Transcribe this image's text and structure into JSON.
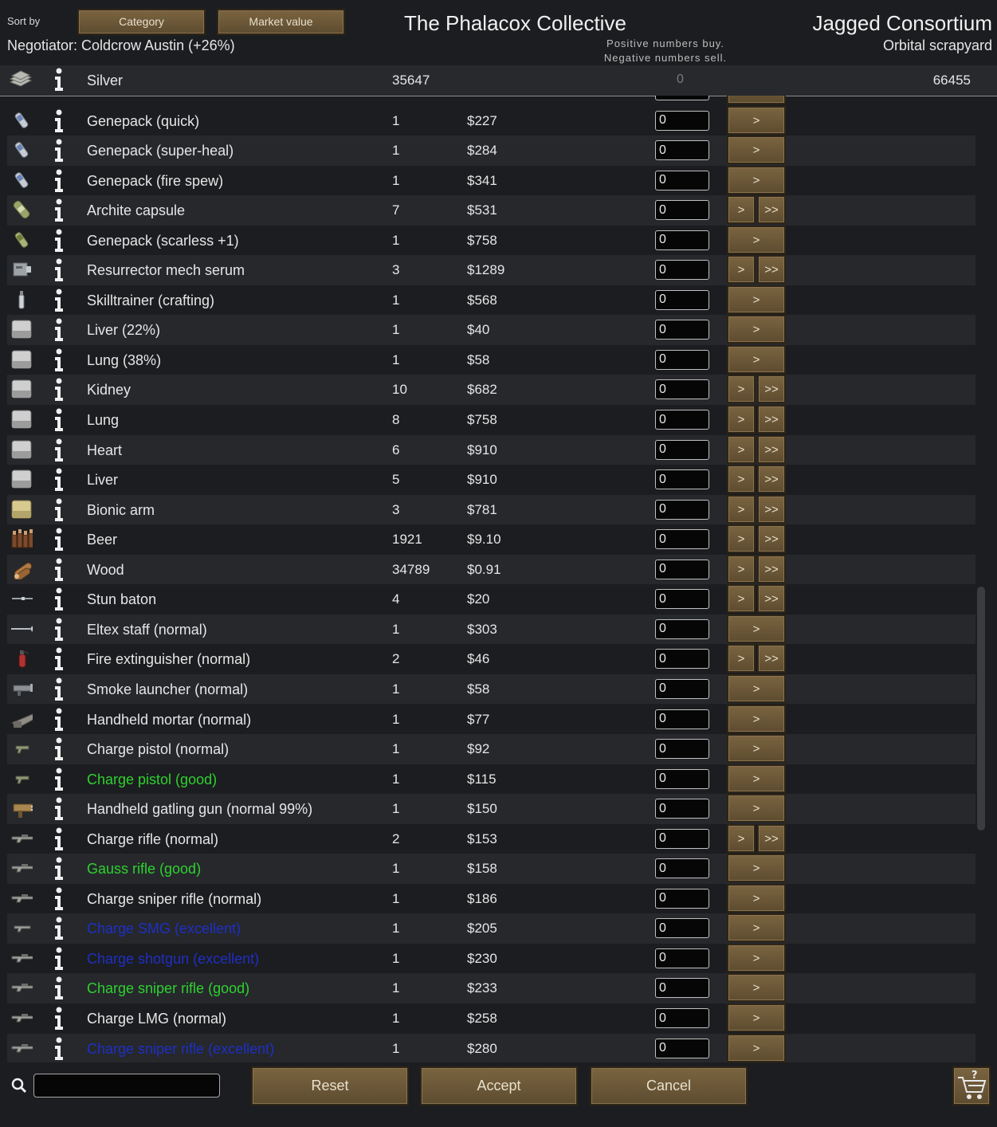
{
  "header": {
    "sort_label": "Sort by",
    "sort_category": "Category",
    "sort_market_value": "Market value",
    "negotiator": "Negotiator: Coldcrow Austin (+26%)",
    "faction_title": "The Phalacox Collective",
    "hint_line1": "Positive numbers buy.",
    "hint_line2": "Negative numbers sell.",
    "trader_name": "Jagged Consortium",
    "trader_subtitle": "Orbital scrapyard"
  },
  "silver": {
    "name": "Silver",
    "colony_count": "35647",
    "trade_amount": "0",
    "trader_count": "66455",
    "icon": "silver-stack-icon"
  },
  "items": [
    {
      "name": "Genepack (quick)",
      "count": "1",
      "price": "$227",
      "qty": "0",
      "quality": "normal",
      "icon": "genepack-icon",
      "buttons": [
        "> "
      ]
    },
    {
      "name": "Genepack (super-heal)",
      "count": "1",
      "price": "$284",
      "qty": "0",
      "quality": "normal",
      "icon": "genepack-icon",
      "buttons": [
        ">"
      ]
    },
    {
      "name": "Genepack (fire spew)",
      "count": "1",
      "price": "$341",
      "qty": "0",
      "quality": "normal",
      "icon": "genepack-icon",
      "buttons": [
        ">"
      ]
    },
    {
      "name": "Archite capsule",
      "count": "7",
      "price": "$531",
      "qty": "0",
      "quality": "normal",
      "icon": "archite-capsule-icon",
      "buttons": [
        ">",
        ">>"
      ]
    },
    {
      "name": "Genepack (scarless +1)",
      "count": "1",
      "price": "$758",
      "qty": "0",
      "quality": "normal",
      "icon": "genepack-green-icon",
      "buttons": [
        ">"
      ]
    },
    {
      "name": "Resurrector mech serum",
      "count": "3",
      "price": "$1289",
      "qty": "0",
      "quality": "normal",
      "icon": "mech-serum-icon",
      "buttons": [
        ">",
        ">>"
      ]
    },
    {
      "name": "Skilltrainer (crafting)",
      "count": "1",
      "price": "$568",
      "qty": "0",
      "quality": "normal",
      "icon": "skilltrainer-icon",
      "buttons": [
        ">"
      ]
    },
    {
      "name": "Liver (22%)",
      "count": "1",
      "price": "$40",
      "qty": "0",
      "quality": "normal",
      "icon": "organ-icon",
      "buttons": [
        ">"
      ]
    },
    {
      "name": "Lung (38%)",
      "count": "1",
      "price": "$58",
      "qty": "0",
      "quality": "normal",
      "icon": "organ-icon",
      "buttons": [
        ">"
      ]
    },
    {
      "name": "Kidney",
      "count": "10",
      "price": "$682",
      "qty": "0",
      "quality": "normal",
      "icon": "organ-icon",
      "buttons": [
        ">",
        ">>"
      ]
    },
    {
      "name": "Lung",
      "count": "8",
      "price": "$758",
      "qty": "0",
      "quality": "normal",
      "icon": "organ-icon",
      "buttons": [
        ">",
        ">>"
      ]
    },
    {
      "name": "Heart",
      "count": "6",
      "price": "$910",
      "qty": "0",
      "quality": "normal",
      "icon": "organ-icon",
      "buttons": [
        ">",
        ">>"
      ]
    },
    {
      "name": "Liver",
      "count": "5",
      "price": "$910",
      "qty": "0",
      "quality": "normal",
      "icon": "organ-icon",
      "buttons": [
        ">",
        ">>"
      ]
    },
    {
      "name": "Bionic arm",
      "count": "3",
      "price": "$781",
      "qty": "0",
      "quality": "normal",
      "icon": "bionic-icon",
      "buttons": [
        ">",
        ">>"
      ]
    },
    {
      "name": "Beer",
      "count": "1921",
      "price": "$9.10",
      "qty": "0",
      "quality": "normal",
      "icon": "beer-icon",
      "buttons": [
        ">",
        ">>"
      ]
    },
    {
      "name": "Wood",
      "count": "34789",
      "price": "$0.91",
      "qty": "0",
      "quality": "normal",
      "icon": "wood-icon",
      "buttons": [
        ">",
        ">>"
      ]
    },
    {
      "name": "Stun baton",
      "count": "4",
      "price": "$20",
      "qty": "0",
      "quality": "normal",
      "icon": "baton-icon",
      "buttons": [
        ">",
        ">>"
      ]
    },
    {
      "name": "Eltex staff (normal)",
      "count": "1",
      "price": "$303",
      "qty": "0",
      "quality": "normal",
      "icon": "staff-icon",
      "buttons": [
        ">"
      ]
    },
    {
      "name": "Fire extinguisher (normal)",
      "count": "2",
      "price": "$46",
      "qty": "0",
      "quality": "normal",
      "icon": "extinguisher-icon",
      "buttons": [
        ">",
        ">>"
      ]
    },
    {
      "name": "Smoke launcher (normal)",
      "count": "1",
      "price": "$58",
      "qty": "0",
      "quality": "normal",
      "icon": "launcher-icon",
      "buttons": [
        ">"
      ]
    },
    {
      "name": "Handheld mortar (normal)",
      "count": "1",
      "price": "$77",
      "qty": "0",
      "quality": "normal",
      "icon": "mortar-icon",
      "buttons": [
        ">"
      ]
    },
    {
      "name": "Charge pistol (normal)",
      "count": "1",
      "price": "$92",
      "qty": "0",
      "quality": "normal",
      "icon": "pistol-icon",
      "buttons": [
        ">"
      ]
    },
    {
      "name": "Charge pistol (good)",
      "count": "1",
      "price": "$115",
      "qty": "0",
      "quality": "good",
      "icon": "pistol-icon",
      "buttons": [
        ">"
      ]
    },
    {
      "name": "Handheld gatling gun (normal 99%)",
      "count": "1",
      "price": "$150",
      "qty": "0",
      "quality": "normal",
      "icon": "gatling-icon",
      "buttons": [
        ">"
      ]
    },
    {
      "name": "Charge rifle (normal)",
      "count": "2",
      "price": "$153",
      "qty": "0",
      "quality": "normal",
      "icon": "rifle-icon",
      "buttons": [
        ">",
        ">>"
      ]
    },
    {
      "name": "Gauss rifle (good)",
      "count": "1",
      "price": "$158",
      "qty": "0",
      "quality": "good",
      "icon": "rifle-icon",
      "buttons": [
        ">"
      ]
    },
    {
      "name": "Charge sniper rifle (normal)",
      "count": "1",
      "price": "$186",
      "qty": "0",
      "quality": "normal",
      "icon": "rifle-icon",
      "buttons": [
        ">"
      ]
    },
    {
      "name": "Charge SMG (excellent)",
      "count": "1",
      "price": "$205",
      "qty": "0",
      "quality": "excellent",
      "icon": "smg-icon",
      "buttons": [
        ">"
      ]
    },
    {
      "name": "Charge shotgun (excellent)",
      "count": "1",
      "price": "$230",
      "qty": "0",
      "quality": "excellent",
      "icon": "rifle-icon",
      "buttons": [
        ">"
      ]
    },
    {
      "name": "Charge sniper rifle (good)",
      "count": "1",
      "price": "$233",
      "qty": "0",
      "quality": "good",
      "icon": "rifle-icon",
      "buttons": [
        ">"
      ]
    },
    {
      "name": "Charge LMG (normal)",
      "count": "1",
      "price": "$258",
      "qty": "0",
      "quality": "normal",
      "icon": "rifle-icon",
      "buttons": [
        ">"
      ]
    },
    {
      "name": "Charge sniper rifle (excellent)",
      "count": "1",
      "price": "$280",
      "qty": "0",
      "quality": "excellent",
      "icon": "rifle-icon",
      "buttons": [
        ">"
      ]
    }
  ],
  "footer": {
    "reset": "Reset",
    "accept": "Accept",
    "cancel": "Cancel"
  },
  "colors": {
    "good": "#2ed12e",
    "excellent": "#1f2fc4",
    "button_brown": "#6b5637"
  }
}
